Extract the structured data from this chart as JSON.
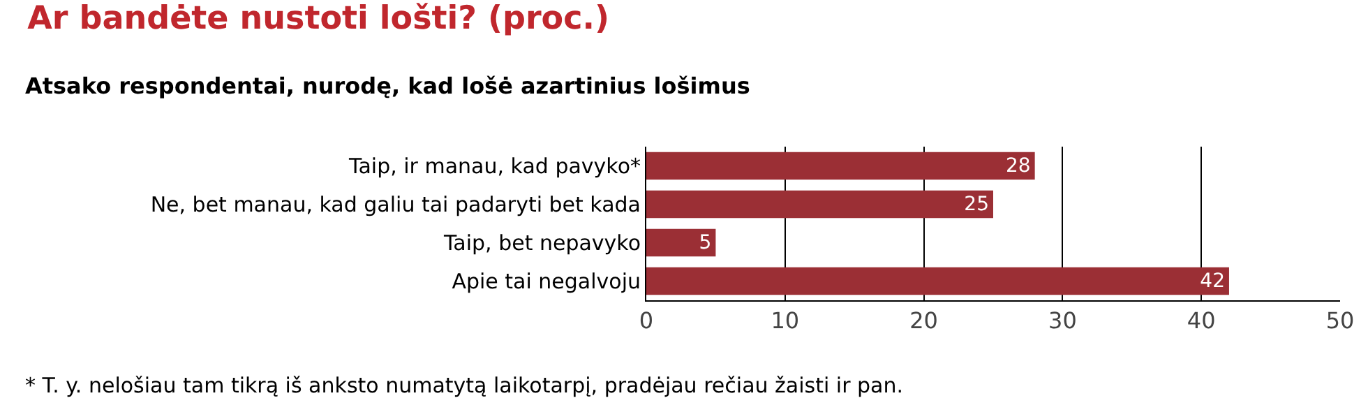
{
  "chart_data": {
    "type": "bar",
    "orientation": "horizontal",
    "title": "Ar bandėte nustoti lošti? (proc.)",
    "subtitle": "Atsako respondentai, nurodę, kad lošė azartinius lošimus",
    "categories": [
      "Taip, ir manau, kad pavyko*",
      "Ne, bet manau, kad galiu tai padaryti bet kada",
      "Taip, bet nepavyko",
      "Apie tai negalvoju"
    ],
    "values": [
      28,
      25,
      5,
      42
    ],
    "color": "#9b2f35",
    "xlim": [
      0,
      50
    ],
    "xticks": [
      0,
      10,
      20,
      30,
      40,
      50
    ],
    "grid": "x",
    "data_labels": true,
    "annotations": [
      "* T. y. nelošiau tam tikrą iš anksto numatytą laikotarpį, pradėjau rečiau žaisti ir pan."
    ]
  }
}
